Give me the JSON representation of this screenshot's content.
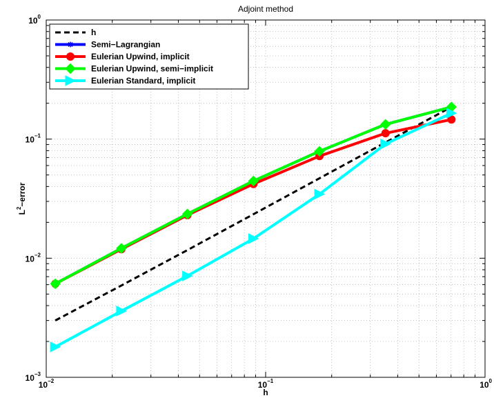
{
  "chart_data": {
    "type": "line",
    "title": "Adjoint method",
    "xlabel": "h",
    "ylabel": "L²−error",
    "ylabel_base": "L",
    "ylabel_sup": "2",
    "ylabel_rest": "−error",
    "xscale": "log",
    "yscale": "log",
    "xlim": [
      0.01,
      1
    ],
    "ylim": [
      0.001,
      1
    ],
    "grid": true,
    "legend_position": "top-left",
    "x_ticks": [
      {
        "base": "10",
        "exp": "−2"
      },
      {
        "base": "10",
        "exp": "−1"
      },
      {
        "base": "10",
        "exp": "0"
      }
    ],
    "y_ticks": [
      {
        "base": "10",
        "exp": "−3"
      },
      {
        "base": "10",
        "exp": "−2"
      },
      {
        "base": "10",
        "exp": "−1"
      },
      {
        "base": "10",
        "exp": "0"
      }
    ],
    "series": [
      {
        "name": "h",
        "color": "#000000",
        "style": "dashed",
        "marker": "none",
        "x": [
          0.011,
          0.022,
          0.044,
          0.088,
          0.176,
          0.352,
          0.703
        ],
        "y": [
          0.003,
          0.0059,
          0.0117,
          0.0234,
          0.0469,
          0.0938,
          0.186
        ]
      },
      {
        "name": "Semi−Lagrangian",
        "color": "#0000ff",
        "style": "solid",
        "marker": "star",
        "x": [
          0.011,
          0.022,
          0.044,
          0.088,
          0.176,
          0.352,
          0.703
        ],
        "y": [
          0.0061,
          0.0121,
          0.0235,
          0.0445,
          0.079,
          0.133,
          0.186
        ]
      },
      {
        "name": "Eulerian Upwind, implicit",
        "color": "#ff0000",
        "style": "solid",
        "marker": "circle",
        "x": [
          0.011,
          0.022,
          0.044,
          0.088,
          0.176,
          0.352,
          0.703
        ],
        "y": [
          0.0061,
          0.0119,
          0.023,
          0.042,
          0.072,
          0.112,
          0.146
        ]
      },
      {
        "name": "Eulerian Upwind, semi−implicit",
        "color": "#00ff00",
        "style": "solid",
        "marker": "diamond",
        "x": [
          0.011,
          0.022,
          0.044,
          0.088,
          0.176,
          0.352,
          0.703
        ],
        "y": [
          0.0061,
          0.0121,
          0.0235,
          0.0445,
          0.079,
          0.133,
          0.186
        ]
      },
      {
        "name": "Eulerian Standard, implicit",
        "color": "#00ffff",
        "style": "solid",
        "marker": "triangle-right",
        "x": [
          0.011,
          0.022,
          0.044,
          0.088,
          0.176,
          0.352,
          0.703
        ],
        "y": [
          0.0018,
          0.0036,
          0.0071,
          0.0146,
          0.0345,
          0.091,
          0.165
        ]
      }
    ]
  }
}
